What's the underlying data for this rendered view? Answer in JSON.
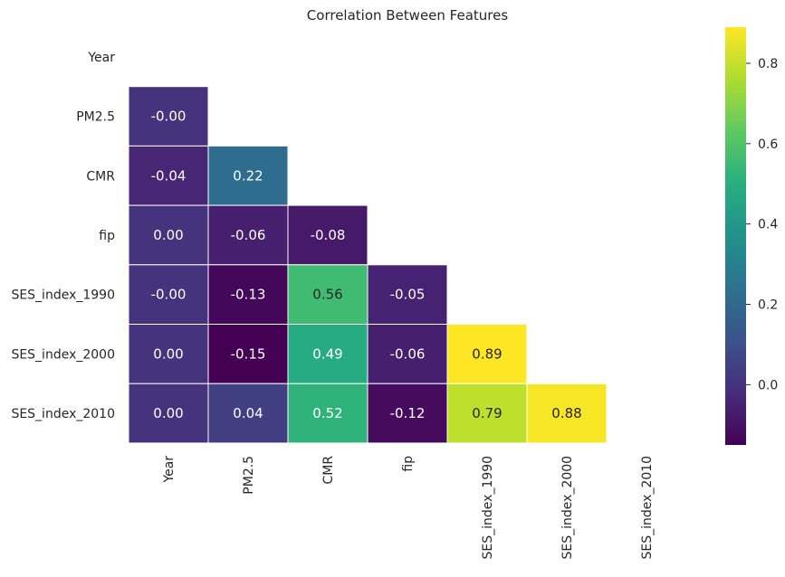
{
  "chart_data": {
    "type": "heatmap",
    "title": "Correlation Between Features",
    "xlabel": "",
    "ylabel": "",
    "labels": [
      "Year",
      "PM2.5",
      "CMR",
      "fip",
      "SES_index_1990",
      "SES_index_2000",
      "SES_index_2010"
    ],
    "mask": "upper-triangle-including-diagonal",
    "colormap": "viridis",
    "grid": false,
    "legend": "colorbar-right",
    "values": [
      [
        null,
        null,
        null,
        null,
        null,
        null,
        null
      ],
      [
        -0.0,
        null,
        null,
        null,
        null,
        null,
        null
      ],
      [
        -0.04,
        0.22,
        null,
        null,
        null,
        null,
        null
      ],
      [
        0.0,
        -0.06,
        -0.08,
        null,
        null,
        null,
        null
      ],
      [
        -0.0,
        -0.13,
        0.56,
        -0.05,
        null,
        null,
        null
      ],
      [
        0.0,
        -0.15,
        0.49,
        -0.06,
        0.89,
        null,
        null
      ],
      [
        0.0,
        0.04,
        0.52,
        -0.12,
        0.79,
        0.88,
        null
      ]
    ],
    "cell_labels": [
      [
        null,
        null,
        null,
        null,
        null,
        null,
        null
      ],
      [
        "-0.00",
        null,
        null,
        null,
        null,
        null,
        null
      ],
      [
        "-0.04",
        "0.22",
        null,
        null,
        null,
        null,
        null
      ],
      [
        "0.00",
        "-0.06",
        "-0.08",
        null,
        null,
        null,
        null
      ],
      [
        "-0.00",
        "-0.13",
        "0.56",
        "-0.05",
        null,
        null,
        null
      ],
      [
        "0.00",
        "-0.15",
        "0.49",
        "-0.06",
        "0.89",
        null,
        null
      ],
      [
        "0.00",
        "0.04",
        "0.52",
        "-0.12",
        "0.79",
        "0.88",
        null
      ]
    ],
    "colorbar": {
      "min": -0.15,
      "max": 0.89,
      "ticks": [
        0.0,
        0.2,
        0.4,
        0.6,
        0.8
      ],
      "tick_labels": [
        "0.0",
        "0.2",
        "0.4",
        "0.6",
        "0.8"
      ]
    }
  }
}
